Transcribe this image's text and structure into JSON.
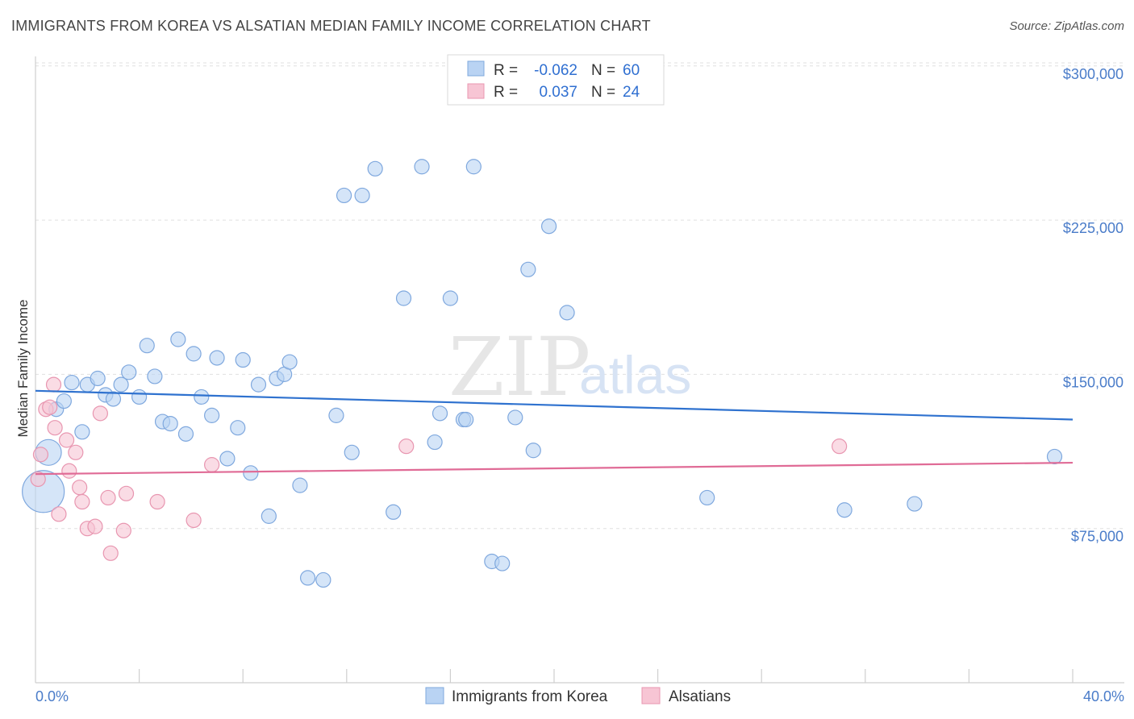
{
  "header": {
    "title": "IMMIGRANTS FROM KOREA VS ALSATIAN MEDIAN FAMILY INCOME CORRELATION CHART",
    "source": "Source: ZipAtlas.com"
  },
  "watermark": {
    "part1": "ZIP",
    "part2": "atlas"
  },
  "colors": {
    "blue_fill": "#b9d3f3",
    "blue_stroke": "#7fa8de",
    "blue_line": "#2f72cf",
    "pink_fill": "#f7c5d4",
    "pink_stroke": "#e896b0",
    "pink_line": "#e06b96",
    "tick_text": "#4a7cc9",
    "grid": "#e0e0e0"
  },
  "stats": [
    {
      "r_label": "R =",
      "r_value": "-0.062",
      "n_label": "N =",
      "n_value": "60"
    },
    {
      "r_label": "R =",
      "r_value": "0.037",
      "n_label": "N =",
      "n_value": "24"
    }
  ],
  "chart_data": {
    "type": "scatter",
    "title": "IMMIGRANTS FROM KOREA VS ALSATIAN MEDIAN FAMILY INCOME CORRELATION CHART",
    "xlabel": "",
    "ylabel": "Median Family Income",
    "xlim": [
      0,
      40
    ],
    "ylim": [
      0,
      315000
    ],
    "x_tick_labels": [
      "0.0%",
      "40.0%"
    ],
    "y_ticks": [
      75000,
      150000,
      225000,
      300000
    ],
    "y_tick_labels": [
      "$75,000",
      "$150,000",
      "$225,000",
      "$300,000"
    ],
    "grid": true,
    "legend_position": "bottom-center",
    "series": [
      {
        "name": "Immigrants from Korea",
        "color": "blue",
        "trend": {
          "x": [
            0,
            40
          ],
          "y": [
            142000,
            128000
          ]
        },
        "points": [
          {
            "x": 0.5,
            "y": 112000,
            "s": 16
          },
          {
            "x": 0.3,
            "y": 93000,
            "s": 26
          },
          {
            "x": 0.8,
            "y": 133000
          },
          {
            "x": 1.1,
            "y": 137000
          },
          {
            "x": 1.4,
            "y": 146000
          },
          {
            "x": 1.8,
            "y": 122000
          },
          {
            "x": 2.0,
            "y": 145000
          },
          {
            "x": 2.4,
            "y": 148000
          },
          {
            "x": 2.7,
            "y": 140000
          },
          {
            "x": 3.0,
            "y": 138000
          },
          {
            "x": 3.3,
            "y": 145000
          },
          {
            "x": 3.6,
            "y": 151000
          },
          {
            "x": 4.0,
            "y": 139000
          },
          {
            "x": 4.3,
            "y": 164000
          },
          {
            "x": 4.6,
            "y": 149000
          },
          {
            "x": 4.9,
            "y": 127000
          },
          {
            "x": 5.2,
            "y": 126000
          },
          {
            "x": 5.5,
            "y": 167000
          },
          {
            "x": 5.8,
            "y": 121000
          },
          {
            "x": 6.1,
            "y": 160000
          },
          {
            "x": 6.4,
            "y": 139000
          },
          {
            "x": 6.8,
            "y": 130000
          },
          {
            "x": 7.0,
            "y": 158000
          },
          {
            "x": 7.4,
            "y": 109000
          },
          {
            "x": 7.8,
            "y": 124000
          },
          {
            "x": 8.0,
            "y": 157000
          },
          {
            "x": 8.3,
            "y": 102000
          },
          {
            "x": 8.6,
            "y": 145000
          },
          {
            "x": 9.0,
            "y": 81000
          },
          {
            "x": 9.3,
            "y": 148000
          },
          {
            "x": 9.6,
            "y": 150000
          },
          {
            "x": 9.8,
            "y": 156000
          },
          {
            "x": 10.2,
            "y": 96000
          },
          {
            "x": 10.5,
            "y": 51000
          },
          {
            "x": 11.1,
            "y": 50000
          },
          {
            "x": 11.6,
            "y": 130000
          },
          {
            "x": 11.9,
            "y": 237000
          },
          {
            "x": 12.2,
            "y": 112000
          },
          {
            "x": 12.6,
            "y": 237000
          },
          {
            "x": 13.1,
            "y": 250000
          },
          {
            "x": 13.8,
            "y": 83000
          },
          {
            "x": 14.2,
            "y": 187000
          },
          {
            "x": 14.9,
            "y": 251000
          },
          {
            "x": 15.4,
            "y": 117000
          },
          {
            "x": 15.6,
            "y": 131000
          },
          {
            "x": 16.0,
            "y": 187000
          },
          {
            "x": 16.5,
            "y": 128000
          },
          {
            "x": 16.6,
            "y": 128000
          },
          {
            "x": 16.9,
            "y": 251000
          },
          {
            "x": 17.6,
            "y": 59000
          },
          {
            "x": 18.0,
            "y": 58000
          },
          {
            "x": 18.5,
            "y": 129000
          },
          {
            "x": 19.0,
            "y": 201000
          },
          {
            "x": 19.2,
            "y": 113000
          },
          {
            "x": 19.8,
            "y": 222000
          },
          {
            "x": 20.5,
            "y": 180000
          },
          {
            "x": 25.9,
            "y": 90000
          },
          {
            "x": 31.2,
            "y": 84000
          },
          {
            "x": 33.9,
            "y": 87000
          },
          {
            "x": 39.3,
            "y": 110000
          }
        ]
      },
      {
        "name": "Alsatians",
        "color": "pink",
        "trend": {
          "x": [
            0,
            40
          ],
          "y": [
            101500,
            107000
          ]
        },
        "points": [
          {
            "x": 0.1,
            "y": 99000
          },
          {
            "x": 0.2,
            "y": 111000
          },
          {
            "x": 0.4,
            "y": 133000
          },
          {
            "x": 0.55,
            "y": 134000
          },
          {
            "x": 0.7,
            "y": 145000
          },
          {
            "x": 0.75,
            "y": 124000
          },
          {
            "x": 0.9,
            "y": 82000
          },
          {
            "x": 1.2,
            "y": 118000
          },
          {
            "x": 1.3,
            "y": 103000
          },
          {
            "x": 1.55,
            "y": 112000
          },
          {
            "x": 1.7,
            "y": 95000
          },
          {
            "x": 1.8,
            "y": 88000
          },
          {
            "x": 2.0,
            "y": 75000
          },
          {
            "x": 2.3,
            "y": 76000
          },
          {
            "x": 2.5,
            "y": 131000
          },
          {
            "x": 2.8,
            "y": 90000
          },
          {
            "x": 2.9,
            "y": 63000
          },
          {
            "x": 3.4,
            "y": 74000
          },
          {
            "x": 3.5,
            "y": 92000
          },
          {
            "x": 4.7,
            "y": 88000
          },
          {
            "x": 6.1,
            "y": 79000
          },
          {
            "x": 6.8,
            "y": 106000
          },
          {
            "x": 14.3,
            "y": 115000
          },
          {
            "x": 31.0,
            "y": 115000
          }
        ]
      }
    ]
  }
}
